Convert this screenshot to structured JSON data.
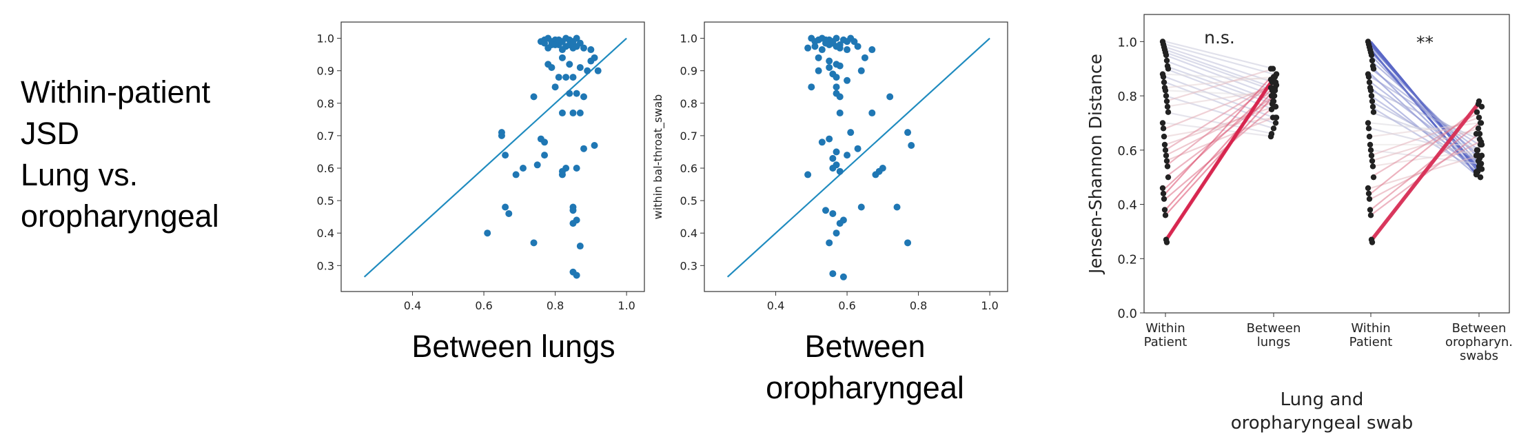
{
  "side_label": {
    "lines": [
      "Within-patient",
      "JSD",
      "Lung vs.",
      "oropharyngeal"
    ]
  },
  "captions": {
    "left": "Between lungs",
    "middle_line1": "Between",
    "middle_line2": "oropharyngeal"
  },
  "colors": {
    "scatter_point": "#1f77b4",
    "diagonal_line": "#1f8bbf",
    "cool_line": "#3b4cc0",
    "warm_line": "#d6204a",
    "paired_point": "#222222"
  },
  "chart_data": [
    {
      "type": "scatter",
      "title": "",
      "xlabel": "",
      "ylabel": "",
      "xlim": [
        0.2,
        1.05
      ],
      "ylim": [
        0.22,
        1.05
      ],
      "xticks": [
        0.4,
        0.6,
        0.8,
        1.0
      ],
      "yticks": [
        0.3,
        0.4,
        0.5,
        0.6,
        0.7,
        0.8,
        0.9,
        1.0
      ],
      "xtick_labels": [
        "0.4",
        "0.6",
        "0.8",
        "1.0"
      ],
      "ytick_labels": [
        "0.3",
        "0.4",
        "0.5",
        "0.6",
        "0.7",
        "0.8",
        "0.9",
        "1.0"
      ],
      "reference_line": [
        [
          0.265,
          0.265
        ],
        [
          1.0,
          1.0
        ]
      ],
      "points": [
        [
          0.76,
          0.99
        ],
        [
          0.77,
          0.985
        ],
        [
          0.78,
          1.0
        ],
        [
          0.79,
          0.99
        ],
        [
          0.8,
          0.995
        ],
        [
          0.81,
          0.98
        ],
        [
          0.82,
          0.99
        ],
        [
          0.83,
          1.0
        ],
        [
          0.84,
          0.995
        ],
        [
          0.85,
          0.99
        ],
        [
          0.86,
          1.0
        ],
        [
          0.87,
          0.985
        ],
        [
          0.78,
          0.97
        ],
        [
          0.8,
          0.98
        ],
        [
          0.83,
          0.975
        ],
        [
          0.85,
          0.97
        ],
        [
          0.77,
          0.995
        ],
        [
          0.79,
          0.98
        ],
        [
          0.82,
          0.965
        ],
        [
          0.84,
          0.98
        ],
        [
          0.86,
          0.975
        ],
        [
          0.81,
          0.995
        ],
        [
          0.88,
          0.97
        ],
        [
          0.9,
          0.965
        ],
        [
          0.9,
          0.93
        ],
        [
          0.82,
          0.94
        ],
        [
          0.84,
          0.92
        ],
        [
          0.91,
          0.94
        ],
        [
          0.92,
          0.9
        ],
        [
          0.78,
          0.92
        ],
        [
          0.79,
          0.91
        ],
        [
          0.87,
          0.91
        ],
        [
          0.89,
          0.9
        ],
        [
          0.83,
          0.88
        ],
        [
          0.85,
          0.88
        ],
        [
          0.81,
          0.88
        ],
        [
          0.8,
          0.85
        ],
        [
          0.86,
          0.83
        ],
        [
          0.84,
          0.83
        ],
        [
          0.88,
          0.82
        ],
        [
          0.74,
          0.82
        ],
        [
          0.82,
          0.77
        ],
        [
          0.85,
          0.77
        ],
        [
          0.87,
          0.77
        ],
        [
          0.65,
          0.71
        ],
        [
          0.65,
          0.7
        ],
        [
          0.76,
          0.69
        ],
        [
          0.77,
          0.68
        ],
        [
          0.66,
          0.64
        ],
        [
          0.77,
          0.64
        ],
        [
          0.88,
          0.66
        ],
        [
          0.91,
          0.67
        ],
        [
          0.71,
          0.6
        ],
        [
          0.75,
          0.61
        ],
        [
          0.82,
          0.59
        ],
        [
          0.83,
          0.6
        ],
        [
          0.86,
          0.6
        ],
        [
          0.69,
          0.58
        ],
        [
          0.82,
          0.58
        ],
        [
          0.66,
          0.48
        ],
        [
          0.67,
          0.46
        ],
        [
          0.85,
          0.48
        ],
        [
          0.85,
          0.47
        ],
        [
          0.86,
          0.44
        ],
        [
          0.85,
          0.43
        ],
        [
          0.61,
          0.4
        ],
        [
          0.74,
          0.37
        ],
        [
          0.87,
          0.36
        ],
        [
          0.85,
          0.28
        ],
        [
          0.86,
          0.27
        ]
      ]
    },
    {
      "type": "scatter",
      "title": "",
      "xlabel": "",
      "ylabel": "within bal-throat_swab",
      "xlim": [
        0.2,
        1.05
      ],
      "ylim": [
        0.22,
        1.05
      ],
      "xticks": [
        0.4,
        0.6,
        0.8,
        1.0
      ],
      "yticks": [
        0.3,
        0.4,
        0.5,
        0.6,
        0.7,
        0.8,
        0.9,
        1.0
      ],
      "xtick_labels": [
        "0.4",
        "0.6",
        "0.8",
        "1.0"
      ],
      "ytick_labels": [
        "0.3",
        "0.4",
        "0.5",
        "0.6",
        "0.7",
        "0.8",
        "0.9",
        "1.0"
      ],
      "reference_line": [
        [
          0.265,
          0.265
        ],
        [
          1.0,
          1.0
        ]
      ],
      "points": [
        [
          0.5,
          1.0
        ],
        [
          0.51,
          0.99
        ],
        [
          0.52,
          0.995
        ],
        [
          0.53,
          1.0
        ],
        [
          0.54,
          0.985
        ],
        [
          0.55,
          0.995
        ],
        [
          0.56,
          0.99
        ],
        [
          0.57,
          1.0
        ],
        [
          0.58,
          0.98
        ],
        [
          0.59,
          0.995
        ],
        [
          0.6,
          0.99
        ],
        [
          0.61,
          1.0
        ],
        [
          0.62,
          0.99
        ],
        [
          0.49,
          0.97
        ],
        [
          0.51,
          0.975
        ],
        [
          0.53,
          0.965
        ],
        [
          0.55,
          0.98
        ],
        [
          0.58,
          0.97
        ],
        [
          0.6,
          0.965
        ],
        [
          0.63,
          0.975
        ],
        [
          0.67,
          0.965
        ],
        [
          0.54,
          0.995
        ],
        [
          0.56,
          0.985
        ],
        [
          0.57,
          0.975
        ],
        [
          0.52,
          0.94
        ],
        [
          0.55,
          0.93
        ],
        [
          0.57,
          0.92
        ],
        [
          0.65,
          0.94
        ],
        [
          0.55,
          0.91
        ],
        [
          0.58,
          0.915
        ],
        [
          0.64,
          0.9
        ],
        [
          0.52,
          0.9
        ],
        [
          0.56,
          0.89
        ],
        [
          0.57,
          0.88
        ],
        [
          0.6,
          0.87
        ],
        [
          0.57,
          0.85
        ],
        [
          0.5,
          0.85
        ],
        [
          0.57,
          0.83
        ],
        [
          0.58,
          0.82
        ],
        [
          0.72,
          0.82
        ],
        [
          0.58,
          0.77
        ],
        [
          0.67,
          0.77
        ],
        [
          0.53,
          0.68
        ],
        [
          0.55,
          0.69
        ],
        [
          0.61,
          0.71
        ],
        [
          0.57,
          0.65
        ],
        [
          0.6,
          0.64
        ],
        [
          0.63,
          0.66
        ],
        [
          0.56,
          0.63
        ],
        [
          0.57,
          0.61
        ],
        [
          0.56,
          0.6
        ],
        [
          0.58,
          0.59
        ],
        [
          0.68,
          0.58
        ],
        [
          0.69,
          0.59
        ],
        [
          0.7,
          0.6
        ],
        [
          0.49,
          0.58
        ],
        [
          0.77,
          0.71
        ],
        [
          0.78,
          0.67
        ],
        [
          0.54,
          0.47
        ],
        [
          0.56,
          0.46
        ],
        [
          0.59,
          0.44
        ],
        [
          0.58,
          0.43
        ],
        [
          0.64,
          0.48
        ],
        [
          0.74,
          0.48
        ],
        [
          0.57,
          0.4
        ],
        [
          0.55,
          0.37
        ],
        [
          0.77,
          0.37
        ],
        [
          0.56,
          0.275
        ],
        [
          0.59,
          0.265
        ]
      ]
    },
    {
      "type": "line",
      "title": "",
      "xlabel": "Lung and oropharyngeal swab",
      "ylabel": "Jensen-Shannon Distance",
      "ylim": [
        0.0,
        1.1
      ],
      "yticks": [
        0.0,
        0.2,
        0.4,
        0.6,
        0.8,
        1.0
      ],
      "ytick_labels": [
        "0.0",
        "0.2",
        "0.4",
        "0.6",
        "0.8",
        "1.0"
      ],
      "categories": [
        {
          "line1": "Within",
          "line2": "Patient",
          "line3": ""
        },
        {
          "line1": "Between",
          "line2": "lungs",
          "line3": ""
        },
        {
          "line1": "Within",
          "line2": "Patient",
          "line3": ""
        },
        {
          "line1": "Between",
          "line2": "oropharyn.",
          "line3": "swabs"
        }
      ],
      "significance": [
        {
          "label": "n.s.",
          "between": [
            0,
            1
          ]
        },
        {
          "label": "**",
          "between": [
            2,
            3
          ]
        }
      ],
      "pairs_group1": [
        [
          1.0,
          0.9
        ],
        [
          0.99,
          0.88
        ],
        [
          0.98,
          0.85
        ],
        [
          0.97,
          0.83
        ],
        [
          0.96,
          0.82
        ],
        [
          0.95,
          0.8
        ],
        [
          0.93,
          0.78
        ],
        [
          0.91,
          0.77
        ],
        [
          0.9,
          0.75
        ],
        [
          0.88,
          0.86
        ],
        [
          0.87,
          0.72
        ],
        [
          0.85,
          0.7
        ],
        [
          0.83,
          0.87
        ],
        [
          0.82,
          0.8
        ],
        [
          0.8,
          0.68
        ],
        [
          0.78,
          0.9
        ],
        [
          0.76,
          0.82
        ],
        [
          0.74,
          0.66
        ],
        [
          0.7,
          0.65
        ],
        [
          0.68,
          0.84
        ],
        [
          0.65,
          0.72
        ],
        [
          0.62,
          0.76
        ],
        [
          0.6,
          0.85
        ],
        [
          0.58,
          0.78
        ],
        [
          0.56,
          0.72
        ],
        [
          0.54,
          0.85
        ],
        [
          0.5,
          0.8
        ],
        [
          0.46,
          0.83
        ],
        [
          0.44,
          0.88
        ],
        [
          0.42,
          0.76
        ],
        [
          0.38,
          0.82
        ],
        [
          0.36,
          0.8
        ],
        [
          0.27,
          0.87
        ],
        [
          0.26,
          0.86
        ]
      ],
      "pairs_group2": [
        [
          1.0,
          0.52
        ],
        [
          0.99,
          0.53
        ],
        [
          0.98,
          0.55
        ],
        [
          0.97,
          0.5
        ],
        [
          0.96,
          0.57
        ],
        [
          0.95,
          0.54
        ],
        [
          0.93,
          0.58
        ],
        [
          0.91,
          0.52
        ],
        [
          0.9,
          0.6
        ],
        [
          0.88,
          0.51
        ],
        [
          0.87,
          0.62
        ],
        [
          0.85,
          0.55
        ],
        [
          0.83,
          0.5
        ],
        [
          0.82,
          0.64
        ],
        [
          0.8,
          0.53
        ],
        [
          0.78,
          0.56
        ],
        [
          0.76,
          0.52
        ],
        [
          0.74,
          0.6
        ],
        [
          0.7,
          0.66
        ],
        [
          0.68,
          0.58
        ],
        [
          0.65,
          0.7
        ],
        [
          0.62,
          0.62
        ],
        [
          0.6,
          0.55
        ],
        [
          0.58,
          0.72
        ],
        [
          0.56,
          0.68
        ],
        [
          0.54,
          0.6
        ],
        [
          0.5,
          0.74
        ],
        [
          0.46,
          0.58
        ],
        [
          0.44,
          0.76
        ],
        [
          0.42,
          0.63
        ],
        [
          0.38,
          0.7
        ],
        [
          0.36,
          0.66
        ],
        [
          0.27,
          0.78
        ],
        [
          0.26,
          0.77
        ]
      ]
    }
  ]
}
